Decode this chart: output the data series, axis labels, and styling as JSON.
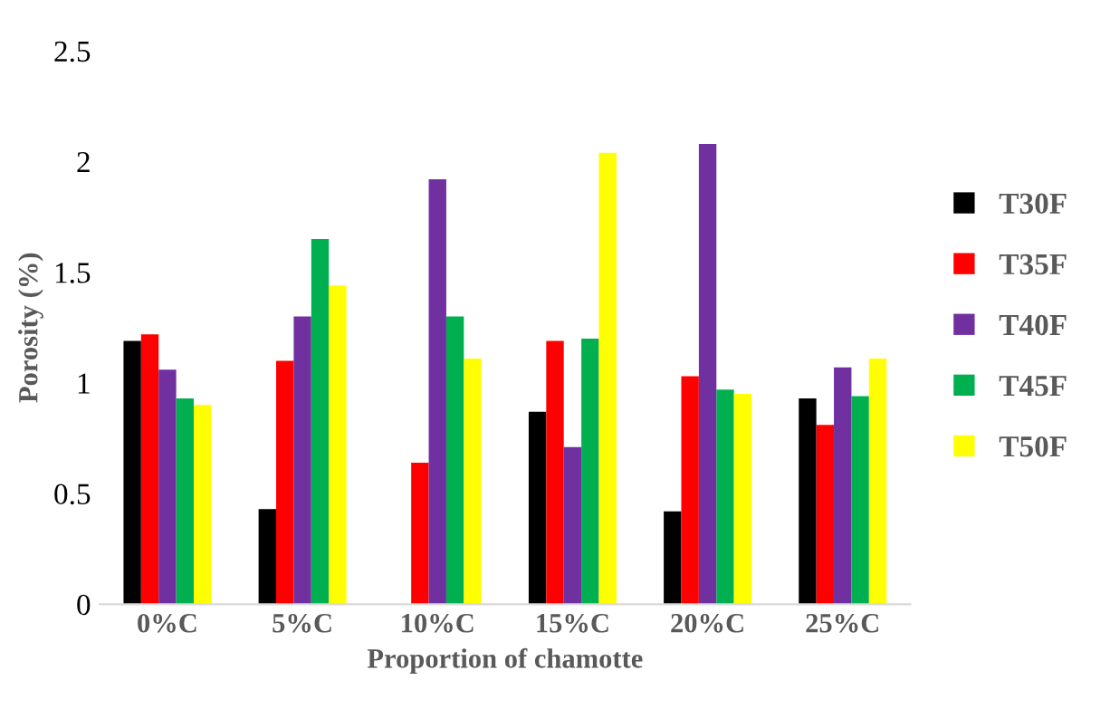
{
  "chart_data": {
    "type": "bar",
    "xlabel": "Proportion of chamotte",
    "ylabel": "Porosity (%)",
    "categories": [
      "0%C",
      "5%C",
      "10%C",
      "15%C",
      "20%C",
      "25%C"
    ],
    "series": [
      {
        "name": "T30F",
        "color": "#000000",
        "values": [
          1.19,
          0.43,
          0,
          0.87,
          0.42,
          0.93
        ]
      },
      {
        "name": "T35F",
        "color": "#ff0000",
        "values": [
          1.22,
          1.1,
          0.64,
          1.19,
          1.03,
          0.81
        ]
      },
      {
        "name": "T40F",
        "color": "#7030a0",
        "values": [
          1.06,
          1.3,
          1.92,
          0.71,
          2.08,
          1.07
        ]
      },
      {
        "name": "T45F",
        "color": "#00b050",
        "values": [
          0.93,
          1.65,
          1.3,
          1.2,
          0.97,
          0.94
        ]
      },
      {
        "name": "T50F",
        "color": "#ffff00",
        "values": [
          0.9,
          1.44,
          1.11,
          2.04,
          0.95,
          1.11
        ]
      }
    ],
    "ylim": [
      0,
      2.5
    ],
    "yticks": [
      0,
      0.5,
      1,
      1.5,
      2,
      2.5
    ],
    "grid": false,
    "legend": "right"
  }
}
